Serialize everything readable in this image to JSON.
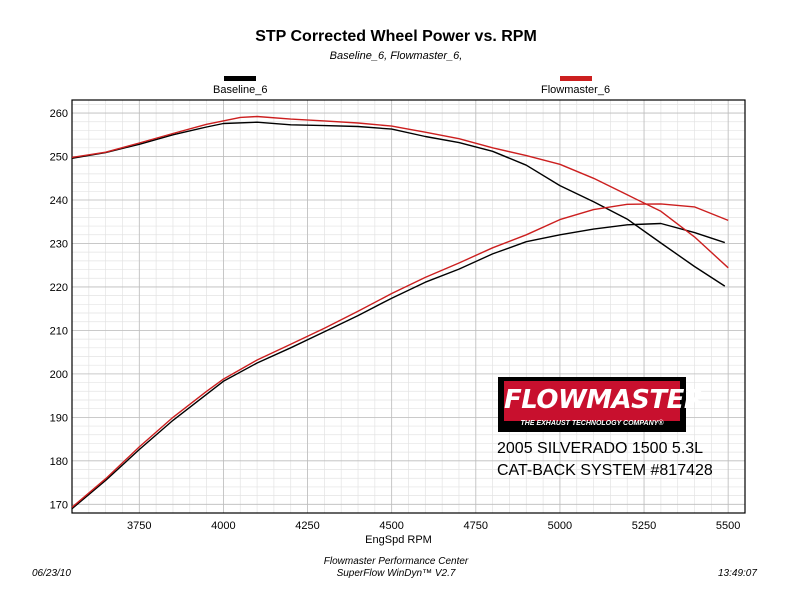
{
  "chart_data": {
    "type": "line",
    "title": "STP Corrected Wheel Power vs. RPM",
    "subtitle": "Baseline_6, Flowmaster_6,",
    "xlabel": "EngSpd  RPM",
    "ylabel": "",
    "xlim": [
      3550,
      5550
    ],
    "ylim": [
      168,
      263
    ],
    "xticks": [
      3750,
      4000,
      4250,
      4500,
      4750,
      5000,
      5250,
      5500
    ],
    "yticks": [
      170,
      180,
      190,
      200,
      210,
      220,
      230,
      240,
      250,
      260
    ],
    "grid": true,
    "legend_placement": "top",
    "colors": {
      "Baseline_6": "#000000",
      "Flowmaster_6": "#cc1f1f"
    },
    "series": [
      {
        "name": "Baseline_6",
        "color": "#000000",
        "curves": [
          {
            "label": "torque",
            "points": [
              [
                3550,
                249.6
              ],
              [
                3650,
                250.9
              ],
              [
                3750,
                252.8
              ],
              [
                3850,
                255.0
              ],
              [
                3950,
                256.8
              ],
              [
                4000,
                257.6
              ],
              [
                4100,
                257.9
              ],
              [
                4200,
                257.3
              ],
              [
                4300,
                257.1
              ],
              [
                4400,
                256.9
              ],
              [
                4500,
                256.3
              ],
              [
                4600,
                254.6
              ],
              [
                4700,
                253.2
              ],
              [
                4800,
                251.2
              ],
              [
                4900,
                248.0
              ],
              [
                5000,
                243.3
              ],
              [
                5100,
                239.6
              ],
              [
                5200,
                235.6
              ],
              [
                5300,
                230.1
              ],
              [
                5400,
                224.7
              ],
              [
                5490,
                220.2
              ]
            ]
          },
          {
            "label": "horsepower",
            "points": [
              [
                3550,
                169.0
              ],
              [
                3650,
                175.5
              ],
              [
                3750,
                182.6
              ],
              [
                3850,
                189.3
              ],
              [
                3950,
                195.3
              ],
              [
                4000,
                198.3
              ],
              [
                4100,
                202.5
              ],
              [
                4200,
                206.0
              ],
              [
                4300,
                209.7
              ],
              [
                4400,
                213.4
              ],
              [
                4500,
                217.4
              ],
              [
                4600,
                221.1
              ],
              [
                4700,
                224.1
              ],
              [
                4800,
                227.6
              ],
              [
                4900,
                230.4
              ],
              [
                5000,
                232.0
              ],
              [
                5100,
                233.3
              ],
              [
                5200,
                234.3
              ],
              [
                5300,
                234.6
              ],
              [
                5400,
                232.5
              ],
              [
                5490,
                230.2
              ]
            ]
          }
        ]
      },
      {
        "name": "Flowmaster_6",
        "color": "#cc1f1f",
        "curves": [
          {
            "label": "torque",
            "points": [
              [
                3550,
                249.8
              ],
              [
                3650,
                251.0
              ],
              [
                3750,
                253.1
              ],
              [
                3850,
                255.3
              ],
              [
                3950,
                257.4
              ],
              [
                4050,
                259.0
              ],
              [
                4100,
                259.2
              ],
              [
                4200,
                258.6
              ],
              [
                4300,
                258.2
              ],
              [
                4400,
                257.7
              ],
              [
                4500,
                257.0
              ],
              [
                4600,
                255.6
              ],
              [
                4700,
                254.1
              ],
              [
                4800,
                252.0
              ],
              [
                4900,
                250.2
              ],
              [
                5000,
                248.2
              ],
              [
                5100,
                245.0
              ],
              [
                5200,
                241.2
              ],
              [
                5300,
                237.4
              ],
              [
                5400,
                231.5
              ],
              [
                5500,
                224.4
              ]
            ]
          },
          {
            "label": "horsepower",
            "points": [
              [
                3550,
                169.3
              ],
              [
                3650,
                175.9
              ],
              [
                3750,
                183.2
              ],
              [
                3850,
                190.0
              ],
              [
                3950,
                196.0
              ],
              [
                4000,
                198.8
              ],
              [
                4100,
                203.2
              ],
              [
                4200,
                206.8
              ],
              [
                4300,
                210.5
              ],
              [
                4400,
                214.4
              ],
              [
                4500,
                218.5
              ],
              [
                4600,
                222.2
              ],
              [
                4700,
                225.5
              ],
              [
                4800,
                229.0
              ],
              [
                4900,
                232.0
              ],
              [
                5000,
                235.5
              ],
              [
                5100,
                237.8
              ],
              [
                5200,
                239.0
              ],
              [
                5300,
                239.1
              ],
              [
                5400,
                238.4
              ],
              [
                5500,
                235.3
              ]
            ]
          }
        ]
      }
    ]
  },
  "header": {
    "title": "STP Corrected Wheel Power vs. RPM",
    "subtitle": "Baseline_6, Flowmaster_6,"
  },
  "legend": {
    "items": [
      {
        "label": "Baseline_6",
        "color": "#000000"
      },
      {
        "label": "Flowmaster_6",
        "color": "#cc1f1f"
      }
    ]
  },
  "axes": {
    "xlabel": "EngSpd  RPM"
  },
  "footer": {
    "date": "06/23/10",
    "center_line1": "Flowmaster Performance Center",
    "center_line2": "SuperFlow WinDyn™ V2.7",
    "time": "13:49:07"
  },
  "logo": {
    "name": "FLOWMASTER",
    "tm": "TM",
    "tagline": "THE EXHAUST TECHNOLOGY COMPANY®",
    "colors": {
      "background": "#000000",
      "accent": "#c8102e"
    }
  },
  "annotation": {
    "line1": "2005 SILVERADO 1500 5.3L",
    "line2": "CAT-BACK SYSTEM #817428"
  }
}
